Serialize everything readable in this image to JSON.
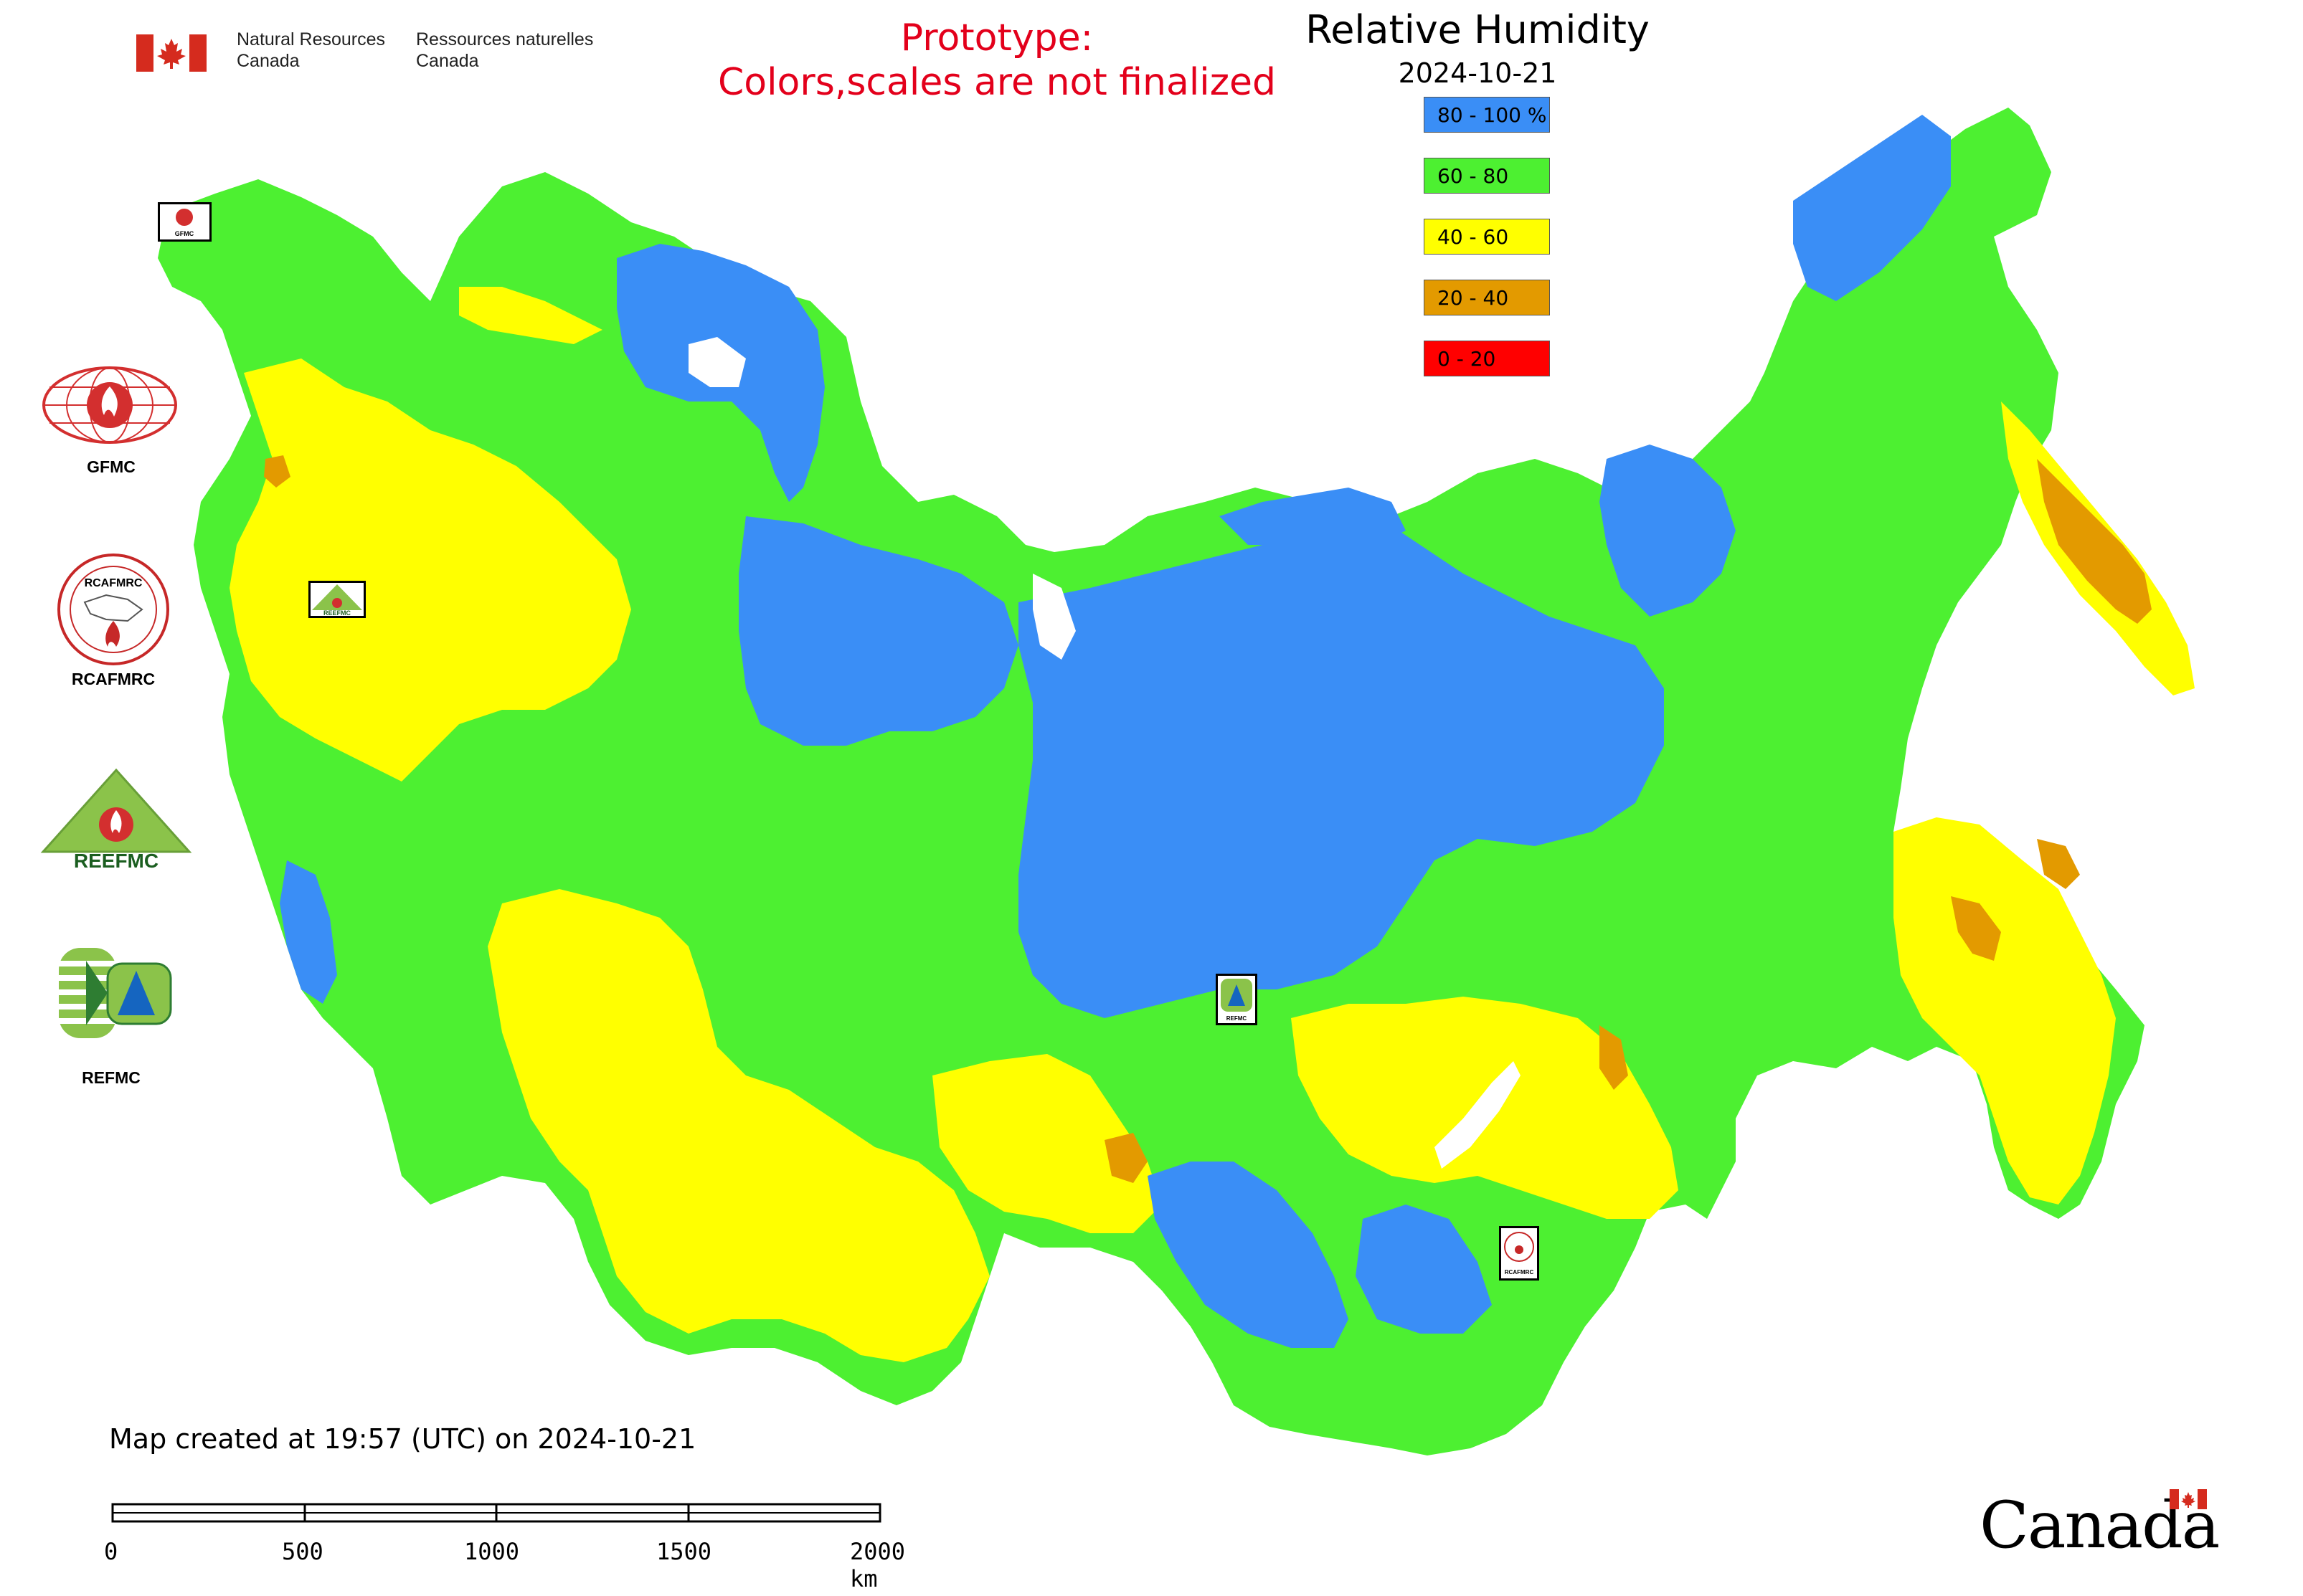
{
  "header": {
    "department_en": "Natural Resources\nCanada",
    "department_fr": "Ressources naturelles\nCanada",
    "prototype_line1": "Prototype:",
    "prototype_line2": "Colors,scales are not finalized"
  },
  "legend": {
    "title": "Relative Humidity",
    "date": "2024-10-21",
    "classes": [
      {
        "label": "80 - 100 %",
        "color": "#3a8ef6"
      },
      {
        "label": "60 - 80",
        "color": "#4df031"
      },
      {
        "label": "40 - 60",
        "color": "#ffff00"
      },
      {
        "label": "20 - 40",
        "color": "#e39a00"
      },
      {
        "label": "0 - 20",
        "color": "#ff0000"
      }
    ]
  },
  "logos": [
    {
      "label": "GFMC"
    },
    {
      "label": "RCAFMRC"
    },
    {
      "label": "REEFMC"
    },
    {
      "label": "REFMC"
    }
  ],
  "logo_inner_text": {
    "rcafmrc": "RCAFMRC",
    "reefmc": "REEFMC"
  },
  "markers": [
    {
      "label": "GFMC"
    },
    {
      "label": "REEFMC"
    },
    {
      "label": "REFMC"
    },
    {
      "label": "RCAFMRC"
    }
  ],
  "footer": {
    "created": "Map created at 19:57 (UTC) on 2024-10-21",
    "scale_labels": [
      "0",
      "500",
      "1000",
      "1500",
      "2000 km"
    ],
    "wordmark": "Canada"
  }
}
